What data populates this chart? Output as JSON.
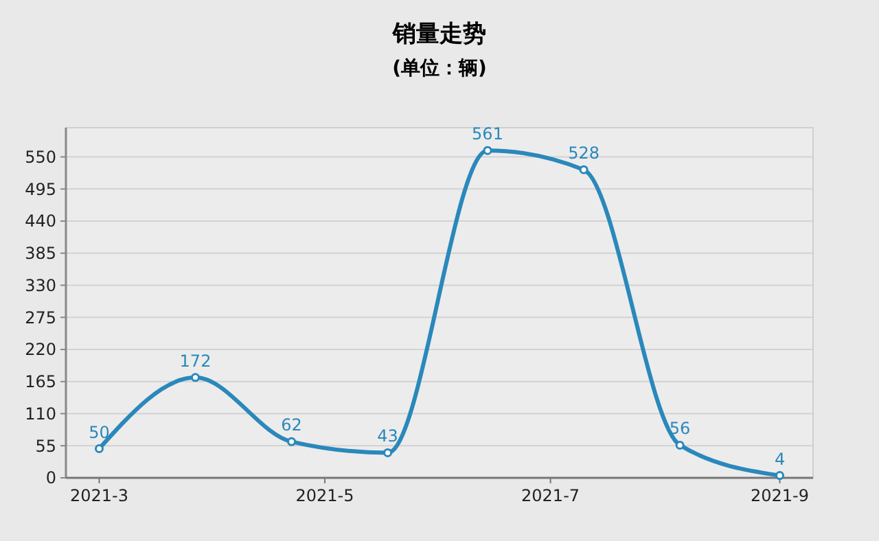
{
  "chart_data": {
    "type": "line",
    "title": "销量走势",
    "subtitle": "(单位：辆)",
    "x": [
      "2021-03-01",
      "2021-03-27",
      "2021-04-22",
      "2021-05-18",
      "2021-06-14",
      "2021-07-10",
      "2021-08-05",
      "2021-09-01"
    ],
    "series": [
      {
        "color": "#2a88bb",
        "values": [
          50,
          172,
          62,
          43,
          561,
          528,
          56,
          4
        ]
      }
    ],
    "xlim": [
      "2021-02-20",
      "2021-09-10"
    ],
    "xticks": [
      {
        "value": "2021-03-01",
        "label": "2021-3"
      },
      {
        "value": "2021-05-01",
        "label": "2021-5"
      },
      {
        "value": "2021-07-01",
        "label": "2021-7"
      },
      {
        "value": "2021-09-01",
        "label": "2021-9"
      }
    ],
    "ylim": [
      0,
      600
    ],
    "yticks": [
      0,
      55,
      110,
      165,
      220,
      275,
      330,
      385,
      440,
      495,
      550
    ],
    "grid": "y",
    "data_labels": true,
    "marker": "circle",
    "line_style": "solid"
  }
}
